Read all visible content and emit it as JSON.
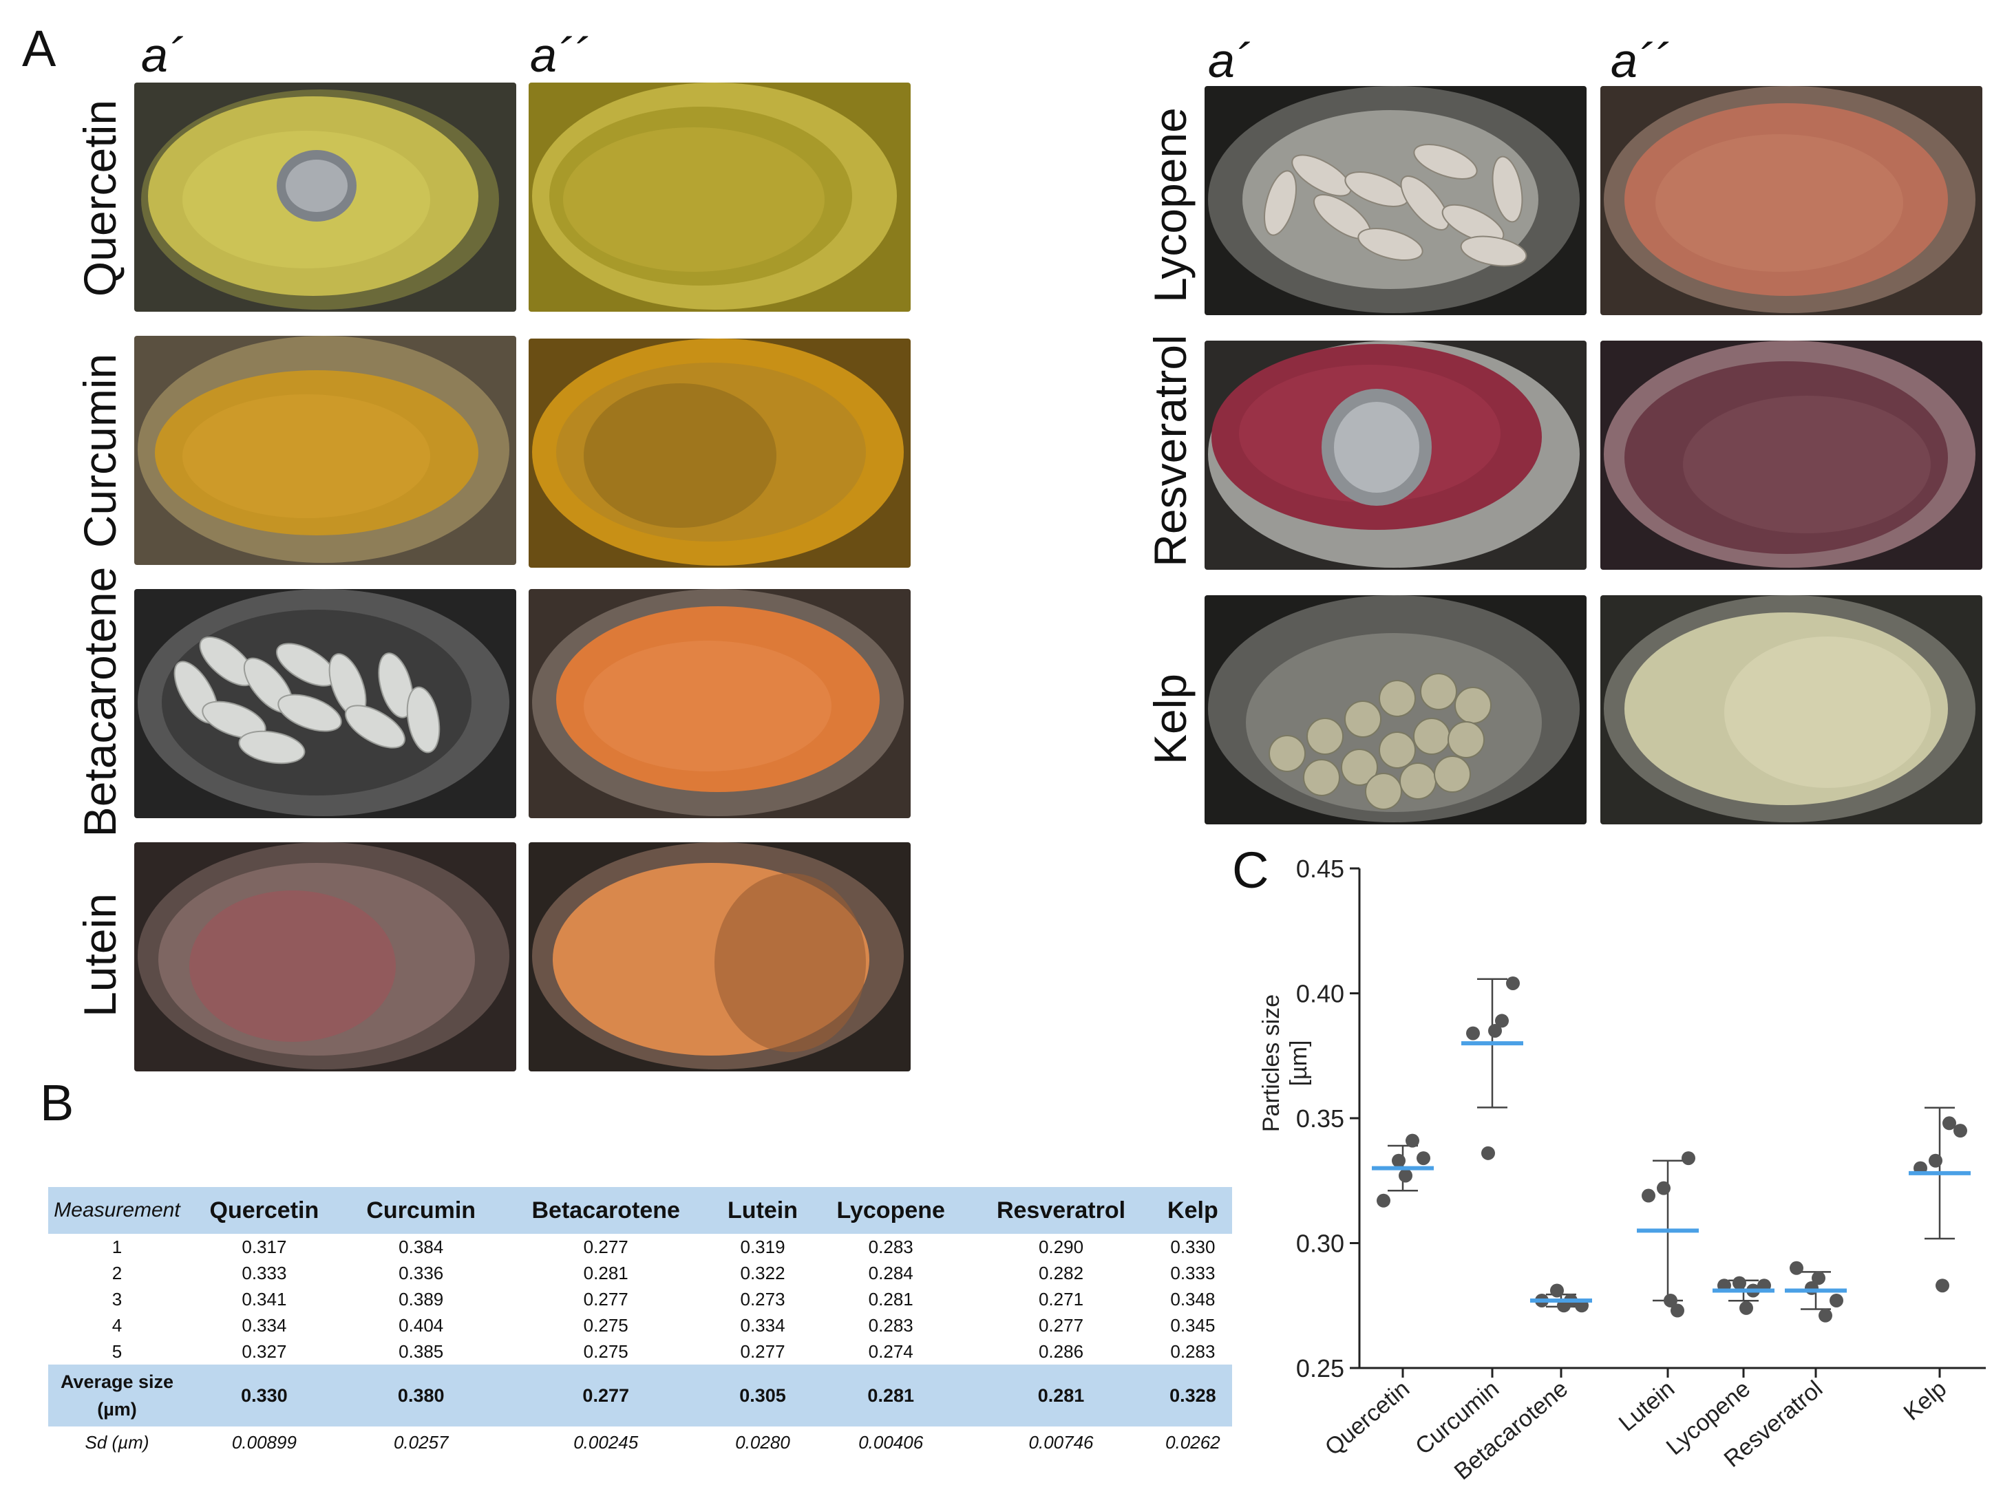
{
  "panels": {
    "a": "A",
    "b": "B",
    "c": "C"
  },
  "photo_grid": {
    "col_heads": [
      "a´",
      "a´´"
    ],
    "left_rows": [
      "Quercetin",
      "Curcumin",
      "Betacarotene",
      "Lutein"
    ],
    "right_rows": [
      "Lycopene",
      "Resveratrol",
      "Kelp"
    ],
    "colors": {
      "quercetin": [
        "#b8b045",
        "#b5a332"
      ],
      "curcumin": [
        "#c09228",
        "#c0921c"
      ],
      "betacarotene": [
        "#3e3e3e",
        "#d8763a"
      ],
      "lutein": [
        "#6e5550",
        "#d98548"
      ],
      "lycopene": [
        "#3a3a38",
        "#b86c58"
      ],
      "resveratrol": [
        "#8a2a3c",
        "#683a45"
      ],
      "kelp": [
        "#40403c",
        "#c5c3a0"
      ]
    }
  },
  "table": {
    "header": [
      "Measurement",
      "Quercetin",
      "Curcumin",
      "Betacarotene",
      "Lutein",
      "Lycopene",
      "Resveratrol",
      "Kelp"
    ],
    "rows": [
      [
        "1",
        "0.317",
        "0.384",
        "0.277",
        "0.319",
        "0.283",
        "0.290",
        "0.330"
      ],
      [
        "2",
        "0.333",
        "0.336",
        "0.281",
        "0.322",
        "0.284",
        "0.282",
        "0.333"
      ],
      [
        "3",
        "0.341",
        "0.389",
        "0.277",
        "0.273",
        "0.281",
        "0.271",
        "0.348"
      ],
      [
        "4",
        "0.334",
        "0.404",
        "0.275",
        "0.334",
        "0.283",
        "0.277",
        "0.345"
      ],
      [
        "5",
        "0.327",
        "0.385",
        "0.275",
        "0.277",
        "0.274",
        "0.286",
        "0.283"
      ]
    ],
    "average": {
      "label_line1": "Average size",
      "label_line2": "(µm)",
      "values": [
        "0.330",
        "0.380",
        "0.277",
        "0.305",
        "0.281",
        "0.281",
        "0.328"
      ]
    },
    "sd": {
      "label": "Sd (µm)",
      "values": [
        "0.00899",
        "0.0257",
        "0.00245",
        "0.0280",
        "0.00406",
        "0.00746",
        "0.0262"
      ]
    }
  },
  "chart_data": {
    "type": "scatter",
    "title": "",
    "xlabel": "",
    "ylabel_line1": "Particles size",
    "ylabel_line2": "[µm]",
    "ylim": [
      0.25,
      0.45
    ],
    "yticks": [
      "0.25",
      "0.30",
      "0.35",
      "0.40",
      "0.45"
    ],
    "categories": [
      "Quercetin",
      "Curcumin",
      "Betacarotene",
      "Lutein",
      "Lycopene",
      "Resveratrol",
      "Kelp"
    ],
    "points": [
      [
        0.317,
        0.333,
        0.341,
        0.334,
        0.327
      ],
      [
        0.384,
        0.336,
        0.389,
        0.404,
        0.385
      ],
      [
        0.277,
        0.281,
        0.277,
        0.275,
        0.275
      ],
      [
        0.319,
        0.322,
        0.273,
        0.334,
        0.277
      ],
      [
        0.283,
        0.284,
        0.281,
        0.283,
        0.274
      ],
      [
        0.29,
        0.282,
        0.271,
        0.277,
        0.286
      ],
      [
        0.33,
        0.333,
        0.348,
        0.345,
        0.283
      ]
    ],
    "means": [
      0.33,
      0.38,
      0.277,
      0.305,
      0.281,
      0.281,
      0.328
    ],
    "errors": [
      0.00899,
      0.0257,
      0.00245,
      0.028,
      0.00406,
      0.00746,
      0.0262
    ],
    "mean_color": "#4aa0e6",
    "point_color": "#555555"
  }
}
